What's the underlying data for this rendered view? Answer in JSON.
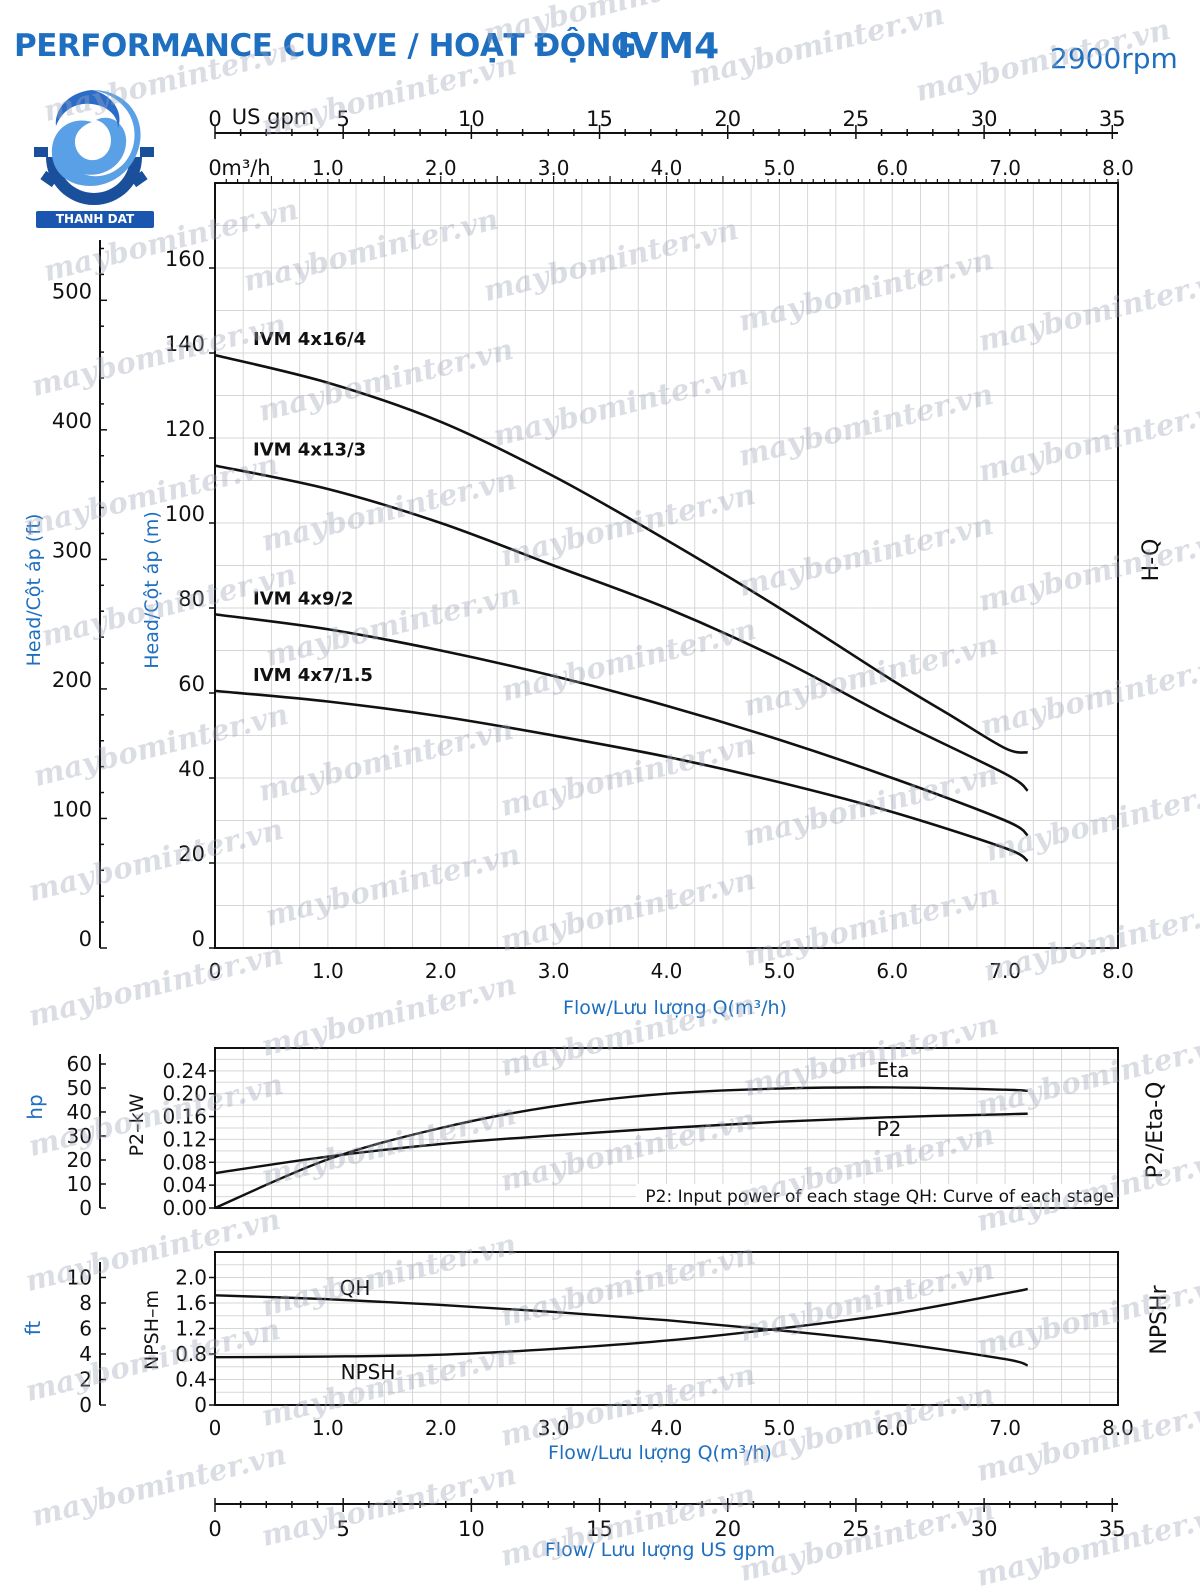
{
  "header": {
    "title": "PERFORMANCE CURVE  / HOẠT ĐỘNG",
    "model": "IVM4",
    "speed": "2900rpm"
  },
  "logo": {
    "text": "THANH DAT",
    "colors": {
      "primary": "#1a56b0",
      "accent": "#5aa0e6",
      "gear": "#1a4f9c"
    }
  },
  "watermark": "maybominter.vn",
  "colors": {
    "blue_label": "#1f6fc0",
    "ink": "#111111",
    "grid": "#d7d7d7"
  },
  "chart_data": [
    {
      "id": "hq",
      "type": "line",
      "side_label": "H-Q",
      "xlabel": "Flow/Lưu lượng Q(m³/h)",
      "ylabel_m": "Head/Cột áp (m)",
      "ylabel_ft": "Head/Cột áp (ft)",
      "xlim": [
        0,
        8
      ],
      "ylim_m": [
        0,
        180
      ],
      "x_ticks": [
        "0",
        "1.0",
        "2.0",
        "3.0",
        "4.0",
        "5.0",
        "6.0",
        "7.0",
        "8.0"
      ],
      "y_ticks_m": [
        "0",
        "20",
        "40",
        "60",
        "80",
        "100",
        "120",
        "140",
        "160"
      ],
      "y_ticks_ft": [
        "0",
        "100",
        "200",
        "300",
        "400",
        "500"
      ],
      "top_axis_usgpm": {
        "unit_label": "US gpm",
        "ticks": [
          "0",
          "5",
          "10",
          "15",
          "20",
          "25",
          "30",
          "35"
        ]
      },
      "top_axis_m3h": {
        "unit_label": "m³/h",
        "ticks": [
          "0",
          "1.0",
          "2.0",
          "3.0",
          "4.0",
          "5.0",
          "6.0",
          "7.0",
          "8.0"
        ]
      },
      "series": [
        {
          "name": "IVM 4x16/4",
          "x": [
            0,
            1,
            2,
            3,
            4,
            5,
            6,
            6.5,
            7,
            7.2
          ],
          "values": [
            139.5,
            133,
            123.8,
            111,
            96,
            80,
            63,
            55,
            47,
            46
          ]
        },
        {
          "name": "IVM 4x13/3",
          "x": [
            0,
            1,
            2,
            3,
            4,
            5,
            6,
            7,
            7.2
          ],
          "values": [
            113.5,
            108,
            100,
            90,
            80,
            68,
            54,
            41,
            37
          ]
        },
        {
          "name": "IVM 4x9/2",
          "x": [
            0,
            1,
            2,
            3,
            4,
            5,
            6,
            7,
            7.2
          ],
          "values": [
            78.5,
            75,
            70,
            64,
            57,
            49,
            40,
            30,
            26.5
          ]
        },
        {
          "name": "IVM 4x7/1.5",
          "x": [
            0,
            1,
            2,
            3,
            4,
            5,
            6,
            7,
            7.2
          ],
          "values": [
            60.5,
            58,
            54.5,
            50,
            45,
            39,
            32,
            23.5,
            20.5
          ]
        }
      ]
    },
    {
      "id": "p2eta",
      "type": "line",
      "side_label": "P2/Eta-Q",
      "ylabel_kw": "P2–kW",
      "ylabel_hp": "hp",
      "xlim": [
        0,
        8
      ],
      "ylim": [
        0,
        0.28
      ],
      "y_ticks_kw": [
        "0.00",
        "0.04",
        "0.08",
        "0.12",
        "0.16",
        "0.20",
        "0.24"
      ],
      "y_ticks_hp": [
        "0",
        "10",
        "20",
        "30",
        "40",
        "50",
        "60"
      ],
      "note": "P2: Input power of each stage QH: Curve of each stage",
      "series": [
        {
          "name": "Eta",
          "x": [
            0,
            1,
            2,
            3,
            4,
            5,
            6,
            7,
            7.2
          ],
          "values": [
            0,
            0.085,
            0.14,
            0.178,
            0.2,
            0.209,
            0.211,
            0.207,
            0.205
          ]
        },
        {
          "name": "P2",
          "x": [
            0,
            1,
            2,
            3,
            4,
            5,
            6,
            7,
            7.2
          ],
          "values": [
            0.061,
            0.09,
            0.112,
            0.127,
            0.14,
            0.151,
            0.159,
            0.164,
            0.165
          ]
        }
      ]
    },
    {
      "id": "npsh",
      "type": "line",
      "side_label": "NPSHr",
      "xlabel": "Flow/Lưu lượng Q(m³/h)",
      "ylabel_m": "NPSH–m",
      "ylabel_ft": "ft",
      "xlim": [
        0,
        8
      ],
      "ylim": [
        0,
        2.4
      ],
      "x_ticks": [
        "0",
        "1.0",
        "2.0",
        "3.0",
        "4.0",
        "5.0",
        "6.0",
        "7.0",
        "8.0"
      ],
      "y_ticks_m": [
        "0",
        "0.4",
        "0.8",
        "1.2",
        "1.6",
        "2.0"
      ],
      "y_ticks_ft": [
        "0",
        "2",
        "4",
        "6",
        "8",
        "10"
      ],
      "series": [
        {
          "name": "QH",
          "x": [
            0,
            1,
            2,
            3,
            4,
            5,
            6,
            7,
            7.2
          ],
          "values": [
            1.72,
            1.66,
            1.57,
            1.46,
            1.33,
            1.17,
            0.98,
            0.72,
            0.62
          ]
        },
        {
          "name": "NPSH",
          "x": [
            0,
            1,
            2,
            3,
            4,
            5,
            6,
            7,
            7.2
          ],
          "values": [
            0.75,
            0.76,
            0.79,
            0.88,
            1.01,
            1.2,
            1.43,
            1.75,
            1.82
          ]
        }
      ]
    },
    {
      "id": "bottom-axis",
      "type": "axis",
      "xlabel": "Flow/ Lưu lượng  US gpm",
      "ticks": [
        "0",
        "5",
        "10",
        "15",
        "20",
        "25",
        "30",
        "35"
      ]
    }
  ]
}
